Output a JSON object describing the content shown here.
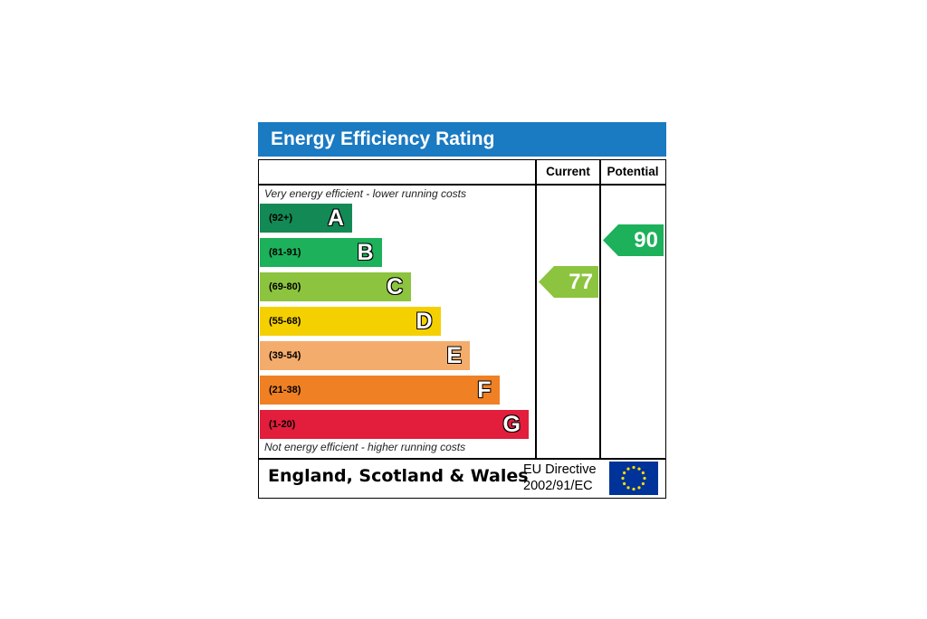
{
  "title": "Energy Efficiency Rating",
  "columns": {
    "current": "Current",
    "potential": "Potential"
  },
  "captions": {
    "top": "Very energy efficient - lower running costs",
    "bottom": "Not energy efficient - higher running costs"
  },
  "chart_data": {
    "type": "bar",
    "title": "Energy Efficiency Rating",
    "bands": [
      {
        "letter": "A",
        "range": "(92+)",
        "color": "#138a55"
      },
      {
        "letter": "B",
        "range": "(81-91)",
        "color": "#1cb15a"
      },
      {
        "letter": "C",
        "range": "(69-80)",
        "color": "#8cc43f"
      },
      {
        "letter": "D",
        "range": "(55-68)",
        "color": "#f5d000"
      },
      {
        "letter": "E",
        "range": "(39-54)",
        "color": "#f4ac6c"
      },
      {
        "letter": "F",
        "range": "(21-38)",
        "color": "#ef8023"
      },
      {
        "letter": "G",
        "range": "(1-20)",
        "color": "#e31d3c"
      }
    ],
    "current": {
      "value": 77,
      "band": "C",
      "color": "#8cc43f"
    },
    "potential": {
      "value": 90,
      "band": "B",
      "color": "#1cb15a"
    }
  },
  "footer": {
    "country": "England, Scotland & Wales",
    "directive_line1": "EU Directive",
    "directive_line2": "2002/91/EC"
  },
  "icons": {
    "flag": "eu-flag-icon"
  },
  "colors": {
    "title_bar": "#1a7ac2",
    "eu_flag_blue": "#003399",
    "eu_flag_stars": "#ffdd00"
  }
}
